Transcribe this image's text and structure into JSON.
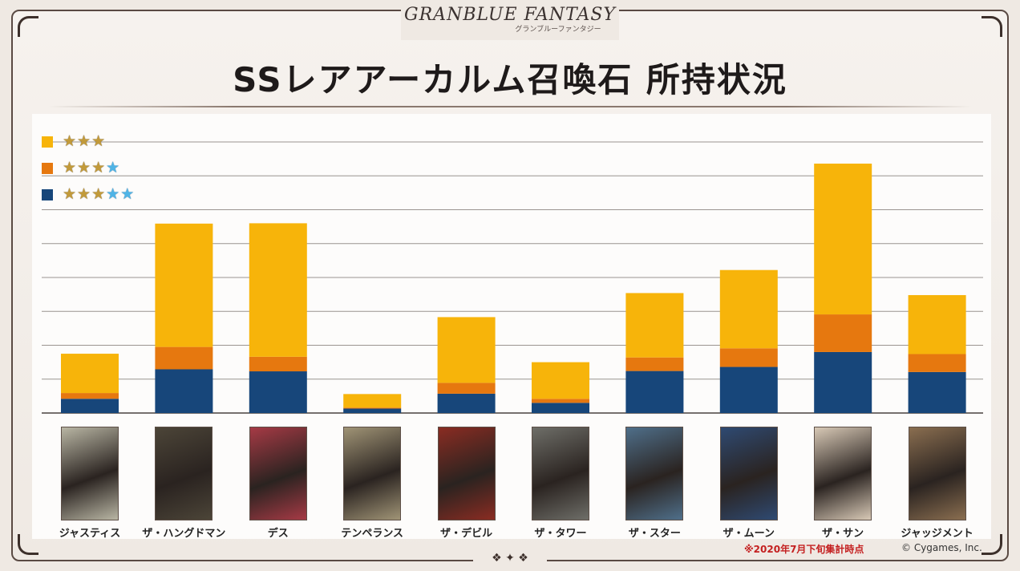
{
  "logo": {
    "main": "GRANBLUE FANTASY",
    "sub": "グランブルーファンタジー"
  },
  "title": "SSレアアーカルム召喚石 所持状況",
  "legend": [
    {
      "swatch": "#f7b40a",
      "gold_stars": 3,
      "blue_stars": 0
    },
    {
      "swatch": "#e6780f",
      "gold_stars": 3,
      "blue_stars": 1
    },
    {
      "swatch": "#17467a",
      "gold_stars": 3,
      "blue_stars": 2
    }
  ],
  "chart_data": {
    "type": "bar",
    "stacked": true,
    "categories": [
      "ジャスティス",
      "ザ・ハングドマン",
      "デス",
      "テンペランス",
      "ザ・デビル",
      "ザ・タワー",
      "ザ・スター",
      "ザ・ムーン",
      "ザ・サン",
      "ジャッジメント"
    ],
    "series": [
      {
        "name": "★★★★★",
        "color": "#17467a",
        "values": [
          0.42,
          1.29,
          1.23,
          0.13,
          0.57,
          0.3,
          1.24,
          1.36,
          1.8,
          1.21
        ]
      },
      {
        "name": "★★★★",
        "color": "#e6780f",
        "values": [
          0.17,
          0.66,
          0.43,
          0.03,
          0.32,
          0.12,
          0.4,
          0.55,
          1.11,
          0.53
        ]
      },
      {
        "name": "★★★",
        "color": "#f7b40a",
        "values": [
          1.16,
          3.64,
          3.94,
          0.4,
          1.94,
          1.08,
          1.9,
          2.31,
          4.45,
          1.74
        ]
      }
    ],
    "ylim": [
      0,
      8
    ],
    "grid": true,
    "legend_position": "top-left",
    "card_colors": [
      "#b9b6a4",
      "#4c4538",
      "#a63a45",
      "#a09476",
      "#8a2c22",
      "#6e6e68",
      "#4f6f8a",
      "#2f4a72",
      "#d8c9b6",
      "#8a6e50"
    ]
  },
  "footnote": "※2020年7月下旬集計時点",
  "copyright": "© Cygames, Inc."
}
